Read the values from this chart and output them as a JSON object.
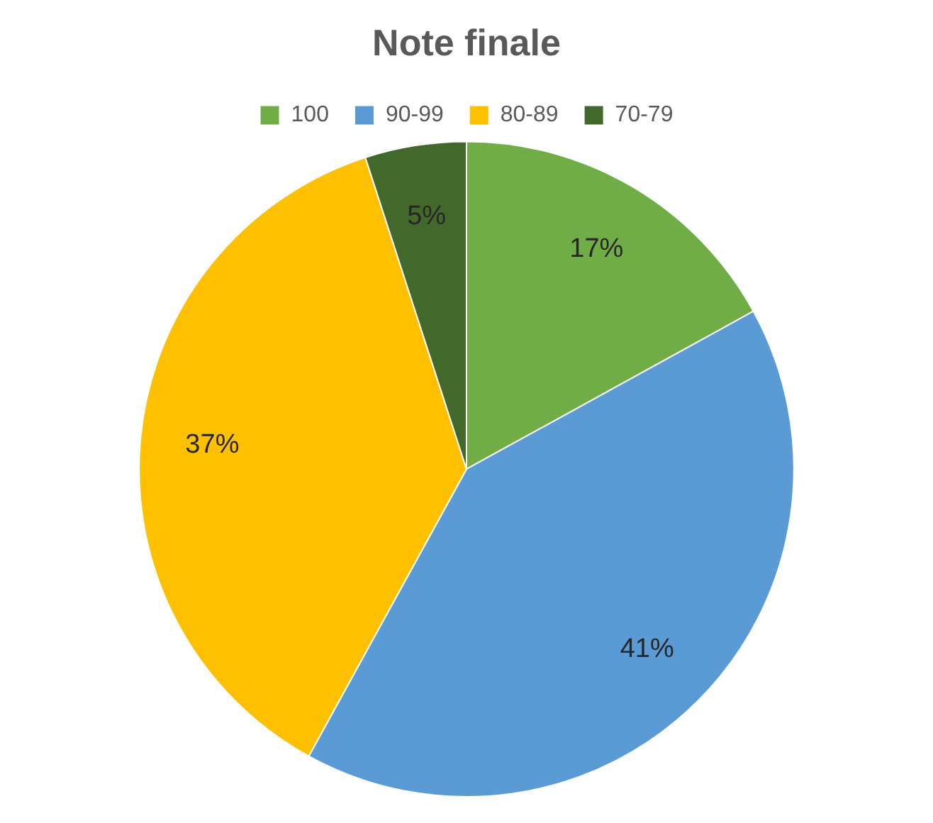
{
  "chart_data": {
    "type": "pie",
    "title": "Note finale",
    "categories": [
      "100",
      "90-99",
      "80-89",
      "70-79"
    ],
    "values": [
      17,
      41,
      37,
      5
    ],
    "colors": [
      "#70ad47",
      "#5b9bd5",
      "#ffc000",
      "#43682b"
    ],
    "value_labels": [
      "17%",
      "41%",
      "37%",
      "5%"
    ],
    "legend": "top"
  }
}
